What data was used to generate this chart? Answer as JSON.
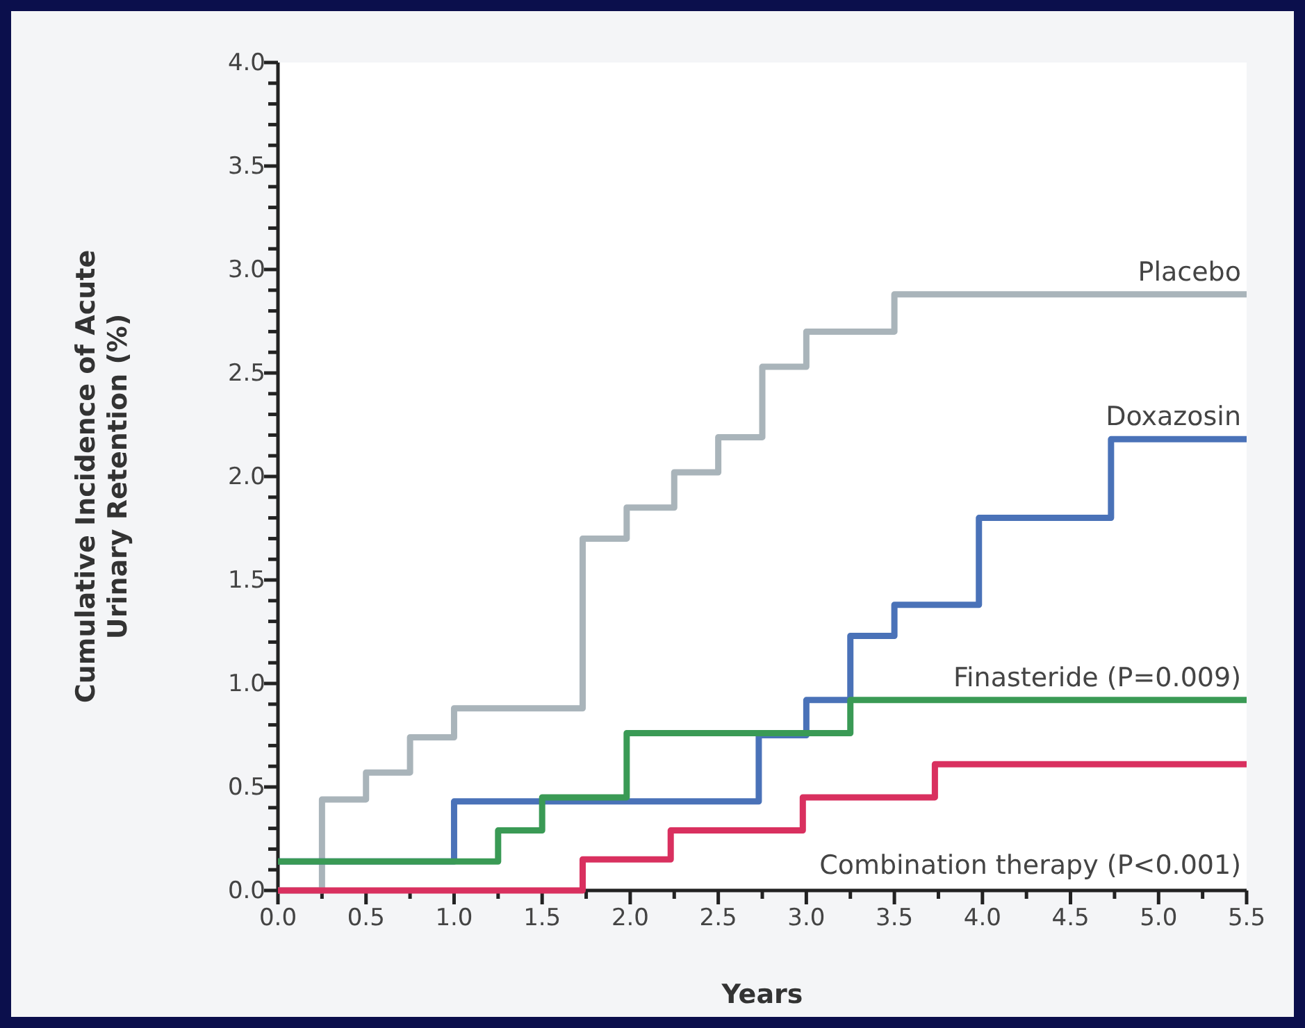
{
  "chart_data": {
    "type": "step",
    "xlabel": "Years",
    "ylabel": "Cumulative Incidence of Acute Urinary Retention (%)",
    "xlim": [
      0,
      5.5
    ],
    "ylim": [
      0,
      4
    ],
    "xticks": [
      {
        "value": 0,
        "label": "0.0"
      },
      {
        "value": 0.25,
        "label": null
      },
      {
        "value": 0.5,
        "label": "0.5"
      },
      {
        "value": 0.75,
        "label": null
      },
      {
        "value": 1,
        "label": "1.0"
      },
      {
        "value": 1.25,
        "label": null
      },
      {
        "value": 1.5,
        "label": "1.5"
      },
      {
        "value": 1.75,
        "label": null
      },
      {
        "value": 2,
        "label": "2.0"
      },
      {
        "value": 2.25,
        "label": null
      },
      {
        "value": 2.5,
        "label": "2.5"
      },
      {
        "value": 2.75,
        "label": null
      },
      {
        "value": 3,
        "label": "3.0"
      },
      {
        "value": 3.25,
        "label": null
      },
      {
        "value": 3.5,
        "label": "3.5"
      },
      {
        "value": 3.75,
        "label": null
      },
      {
        "value": 4,
        "label": "4.0"
      },
      {
        "value": 4.25,
        "label": null
      },
      {
        "value": 4.5,
        "label": "4.5"
      },
      {
        "value": 4.75,
        "label": null
      },
      {
        "value": 5,
        "label": "5.0"
      },
      {
        "value": 5.25,
        "label": null
      },
      {
        "value": 5.5,
        "label": "5.5"
      }
    ],
    "yticks": [
      {
        "value": 0,
        "label": "0.0"
      },
      {
        "value": 0.1,
        "label": null
      },
      {
        "value": 0.2,
        "label": null
      },
      {
        "value": 0.3,
        "label": null
      },
      {
        "value": 0.4,
        "label": null
      },
      {
        "value": 0.5,
        "label": "0.5"
      },
      {
        "value": 0.6,
        "label": null
      },
      {
        "value": 0.7,
        "label": null
      },
      {
        "value": 0.8,
        "label": null
      },
      {
        "value": 0.9,
        "label": null
      },
      {
        "value": 1,
        "label": "1.0"
      },
      {
        "value": 1.1,
        "label": null
      },
      {
        "value": 1.2,
        "label": null
      },
      {
        "value": 1.3,
        "label": null
      },
      {
        "value": 1.4,
        "label": null
      },
      {
        "value": 1.5,
        "label": "1.5"
      },
      {
        "value": 1.6,
        "label": null
      },
      {
        "value": 1.7,
        "label": null
      },
      {
        "value": 1.8,
        "label": null
      },
      {
        "value": 1.9,
        "label": null
      },
      {
        "value": 2,
        "label": "2.0"
      },
      {
        "value": 2.1,
        "label": null
      },
      {
        "value": 2.2,
        "label": null
      },
      {
        "value": 2.3,
        "label": null
      },
      {
        "value": 2.4,
        "label": null
      },
      {
        "value": 2.5,
        "label": "2.5"
      },
      {
        "value": 2.6,
        "label": null
      },
      {
        "value": 2.7,
        "label": null
      },
      {
        "value": 2.8,
        "label": null
      },
      {
        "value": 2.9,
        "label": null
      },
      {
        "value": 3,
        "label": "3.0"
      },
      {
        "value": 3.1,
        "label": null
      },
      {
        "value": 3.2,
        "label": null
      },
      {
        "value": 3.3,
        "label": null
      },
      {
        "value": 3.4,
        "label": null
      },
      {
        "value": 3.5,
        "label": "3.5"
      },
      {
        "value": 3.6,
        "label": null
      },
      {
        "value": 3.7,
        "label": null
      },
      {
        "value": 3.8,
        "label": null
      },
      {
        "value": 3.9,
        "label": null
      },
      {
        "value": 4,
        "label": "4.0"
      }
    ],
    "grid": false,
    "legend": false,
    "series": [
      {
        "name": "Placebo",
        "color": "#a9b4ba",
        "x": [
          0,
          0.25,
          0.5,
          0.75,
          1,
          1.73,
          1.98,
          2.25,
          2.5,
          2.75,
          3,
          3.5,
          5.5
        ],
        "values": [
          0,
          0.44,
          0.57,
          0.74,
          0.88,
          1.7,
          1.85,
          2.02,
          2.19,
          2.53,
          2.7,
          2.88,
          2.88
        ]
      },
      {
        "name": "Doxazosin",
        "color": "#4a72b8",
        "x": [
          0,
          1,
          2.73,
          3,
          3.25,
          3.5,
          3.98,
          4.73,
          5.5
        ],
        "values": [
          0.14,
          0.43,
          0.75,
          0.92,
          1.23,
          1.38,
          1.8,
          2.18,
          2.18
        ]
      },
      {
        "name": "Finasteride (P=0.009)",
        "color": "#3a9a55",
        "x": [
          0,
          1.25,
          1.5,
          1.98,
          3.25,
          5.5
        ],
        "values": [
          0.14,
          0.29,
          0.45,
          0.76,
          0.92,
          0.92
        ]
      },
      {
        "name": "Combination therapy (P<0.001)",
        "color": "#d9305f",
        "x": [
          0,
          1.73,
          2.23,
          2.98,
          3.73,
          5.5
        ],
        "values": [
          0,
          0.15,
          0.29,
          0.45,
          0.61,
          0.61
        ]
      }
    ]
  }
}
